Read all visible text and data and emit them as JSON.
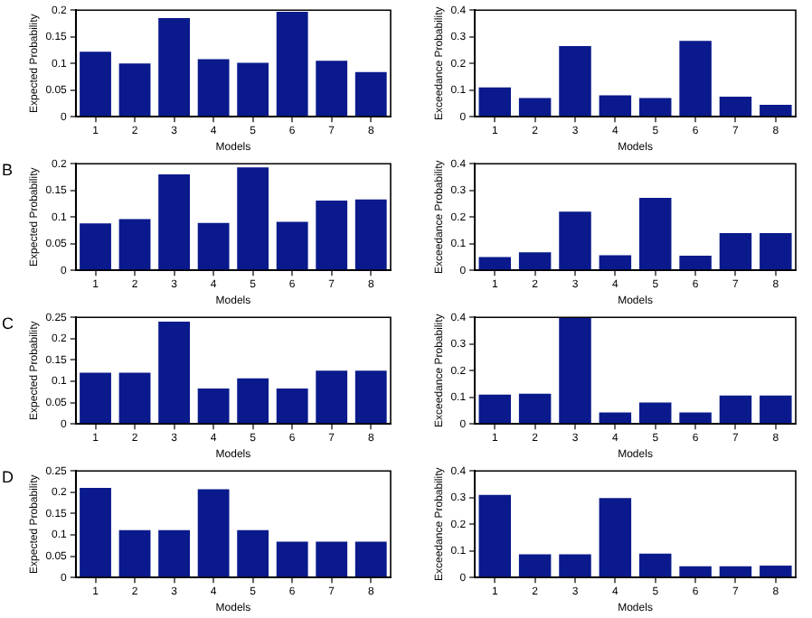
{
  "chart_data": [
    {
      "type": "bar",
      "categories": [
        "1",
        "2",
        "3",
        "4",
        "5",
        "6",
        "7",
        "8"
      ],
      "xlabel": "Models",
      "ylabel": "Expected Probability",
      "ylim": [
        0,
        0.2
      ],
      "yticks": [
        0,
        0.05,
        0.1,
        0.15,
        0.2
      ],
      "grid": false,
      "legend": false,
      "series": [
        {
          "color": "#0a1a8c",
          "values": [
            0.122,
            0.1,
            0.185,
            0.108,
            0.101,
            0.197,
            0.105,
            0.084
          ]
        }
      ]
    },
    {
      "type": "bar",
      "categories": [
        "1",
        "2",
        "3",
        "4",
        "5",
        "6",
        "7",
        "8"
      ],
      "xlabel": "Models",
      "ylabel": "Exceedance Probability",
      "ylim": [
        0,
        0.4
      ],
      "yticks": [
        0,
        0.1,
        0.2,
        0.3,
        0.4
      ],
      "grid": false,
      "legend": false,
      "series": [
        {
          "color": "#0a1a8c",
          "values": [
            0.11,
            0.07,
            0.265,
            0.08,
            0.07,
            0.285,
            0.075,
            0.045
          ]
        }
      ]
    },
    {
      "type": "bar",
      "annotations": [
        "B"
      ],
      "categories": [
        "1",
        "2",
        "3",
        "4",
        "5",
        "6",
        "7",
        "8"
      ],
      "xlabel": "Models",
      "ylabel": "Expected Probability",
      "ylim": [
        0,
        0.2
      ],
      "yticks": [
        0,
        0.05,
        0.1,
        0.15,
        0.2
      ],
      "grid": false,
      "legend": false,
      "series": [
        {
          "color": "#0a1a8c",
          "values": [
            0.088,
            0.096,
            0.18,
            0.089,
            0.193,
            0.091,
            0.131,
            0.133
          ]
        }
      ]
    },
    {
      "type": "bar",
      "categories": [
        "1",
        "2",
        "3",
        "4",
        "5",
        "6",
        "7",
        "8"
      ],
      "xlabel": "Models",
      "ylabel": "Exceedance Probability",
      "ylim": [
        0,
        0.4
      ],
      "yticks": [
        0,
        0.1,
        0.2,
        0.3,
        0.4
      ],
      "grid": false,
      "legend": false,
      "series": [
        {
          "color": "#0a1a8c",
          "values": [
            0.05,
            0.068,
            0.22,
            0.057,
            0.272,
            0.055,
            0.14,
            0.14
          ]
        }
      ]
    },
    {
      "type": "bar",
      "annotations": [
        "C"
      ],
      "categories": [
        "1",
        "2",
        "3",
        "4",
        "5",
        "6",
        "7",
        "8"
      ],
      "xlabel": "Models",
      "ylabel": "Expected Probability",
      "ylim": [
        0,
        0.25
      ],
      "yticks": [
        0,
        0.05,
        0.1,
        0.15,
        0.2,
        0.25
      ],
      "grid": false,
      "legend": false,
      "series": [
        {
          "color": "#0a1a8c",
          "values": [
            0.12,
            0.12,
            0.24,
            0.083,
            0.107,
            0.083,
            0.125,
            0.125
          ]
        }
      ]
    },
    {
      "type": "bar",
      "categories": [
        "1",
        "2",
        "3",
        "4",
        "5",
        "6",
        "7",
        "8"
      ],
      "xlabel": "Models",
      "ylabel": "Exceedance Probability",
      "ylim": [
        0,
        0.4
      ],
      "yticks": [
        0,
        0.1,
        0.2,
        0.3,
        0.4
      ],
      "grid": false,
      "legend": false,
      "series": [
        {
          "color": "#0a1a8c",
          "values": [
            0.11,
            0.113,
            0.4,
            0.043,
            0.08,
            0.043,
            0.107,
            0.107
          ]
        }
      ]
    },
    {
      "type": "bar",
      "annotations": [
        "D"
      ],
      "categories": [
        "1",
        "2",
        "3",
        "4",
        "5",
        "6",
        "7",
        "8"
      ],
      "xlabel": "Models",
      "ylabel": "Expected Probability",
      "ylim": [
        0,
        0.25
      ],
      "yticks": [
        0,
        0.05,
        0.1,
        0.15,
        0.2,
        0.25
      ],
      "grid": false,
      "legend": false,
      "series": [
        {
          "color": "#0a1a8c",
          "values": [
            0.21,
            0.111,
            0.111,
            0.207,
            0.111,
            0.084,
            0.084,
            0.084
          ]
        }
      ]
    },
    {
      "type": "bar",
      "categories": [
        "1",
        "2",
        "3",
        "4",
        "5",
        "6",
        "7",
        "8"
      ],
      "xlabel": "Models",
      "ylabel": "Exceedance Probability",
      "ylim": [
        0,
        0.4
      ],
      "yticks": [
        0,
        0.1,
        0.2,
        0.3,
        0.4
      ],
      "grid": false,
      "legend": false,
      "series": [
        {
          "color": "#0a1a8c",
          "values": [
            0.31,
            0.087,
            0.087,
            0.298,
            0.09,
            0.042,
            0.042,
            0.045
          ]
        }
      ]
    }
  ]
}
